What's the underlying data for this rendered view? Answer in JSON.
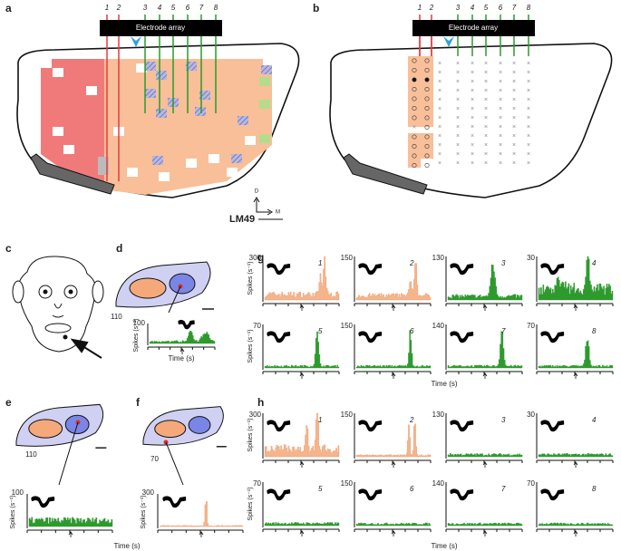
{
  "panels": {
    "a": {
      "label": "a",
      "electrodes": [
        "1",
        "2",
        "3",
        "4",
        "5",
        "6",
        "7",
        "8"
      ],
      "array_label": "Electrode array",
      "animal": "LM49",
      "axes": {
        "dorsal": "D",
        "medial": "M"
      }
    },
    "b": {
      "label": "b",
      "electrodes": [
        "1",
        "2",
        "3",
        "4",
        "5",
        "6",
        "7",
        "8"
      ],
      "array_label": "Electrode array"
    },
    "c": {
      "label": "c"
    },
    "d": {
      "label": "d",
      "scale": "110",
      "ymax": "100",
      "ylabel": "Spikes (s⁻¹)",
      "xlabel": "Time (s)"
    },
    "e": {
      "label": "e",
      "scale": "110",
      "ymax": "100",
      "ylabel": "Spikes (s⁻¹)",
      "xlabel": "Time (s)"
    },
    "f": {
      "label": "f",
      "scale": "70",
      "ymax": "300",
      "ylabel": "Spikes (s⁻¹)"
    },
    "g": {
      "label": "g",
      "ylabel": "Spikes (s⁻¹)",
      "xlabel": "Time (s)",
      "units": [
        {
          "id": "1",
          "ymax": "300"
        },
        {
          "id": "2",
          "ymax": "150"
        },
        {
          "id": "3",
          "ymax": "130"
        },
        {
          "id": "4",
          "ymax": "30"
        },
        {
          "id": "5",
          "ymax": "70"
        },
        {
          "id": "6",
          "ymax": "150"
        },
        {
          "id": "7",
          "ymax": "140"
        },
        {
          "id": "8",
          "ymax": "70"
        }
      ]
    },
    "h": {
      "label": "h",
      "ylabel": "Spikes (s⁻¹)",
      "xlabel": "Time (s)",
      "units": [
        {
          "id": "1",
          "ymax": "300"
        },
        {
          "id": "2",
          "ymax": "150"
        },
        {
          "id": "3",
          "ymax": "130"
        },
        {
          "id": "4",
          "ymax": "30"
        },
        {
          "id": "5",
          "ymax": "70"
        },
        {
          "id": "6",
          "ymax": "150"
        },
        {
          "id": "7",
          "ymax": "140"
        },
        {
          "id": "8",
          "ymax": "70"
        }
      ]
    }
  }
}
